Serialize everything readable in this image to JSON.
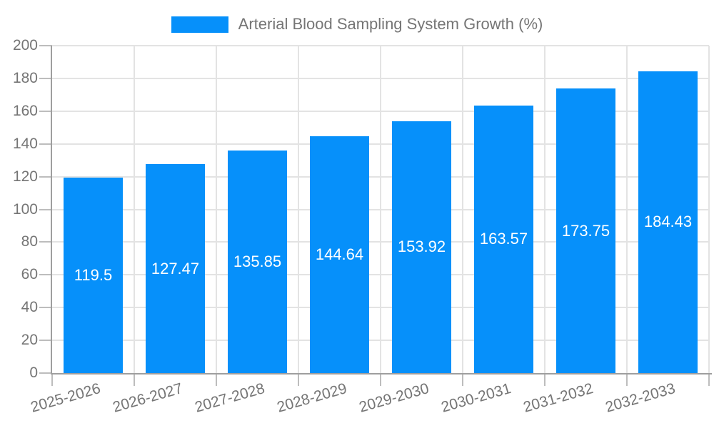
{
  "chart_data": {
    "type": "bar",
    "categories": [
      "2025-2026",
      "2026-2027",
      "2027-2028",
      "2028-2029",
      "2029-2030",
      "2030-2031",
      "2031-2032",
      "2032-2033"
    ],
    "values": [
      119.5,
      127.47,
      135.85,
      144.64,
      153.92,
      163.57,
      173.75,
      184.43
    ],
    "value_labels": [
      "119.5",
      "127.47",
      "135.85",
      "144.64",
      "153.92",
      "163.57",
      "173.75",
      "184.43"
    ],
    "title": "",
    "xlabel": "",
    "ylabel": "",
    "ylim": [
      0,
      200
    ],
    "ytick_interval": 20,
    "ytick_labels": [
      "0",
      "20",
      "40",
      "60",
      "80",
      "100",
      "120",
      "140",
      "160",
      "180",
      "200"
    ],
    "grid": true,
    "legend": {
      "position": "top-center",
      "entries": [
        "Arterial Blood Sampling System Growth (%)"
      ]
    }
  },
  "colors": {
    "bar": "#0690FA",
    "axis": "#9E9E9E",
    "tick": "#BDBDBD",
    "grid": "#E3E3E3",
    "text": "#757575",
    "value_label": "#FFFFFF",
    "background": "#FFFFFF"
  }
}
